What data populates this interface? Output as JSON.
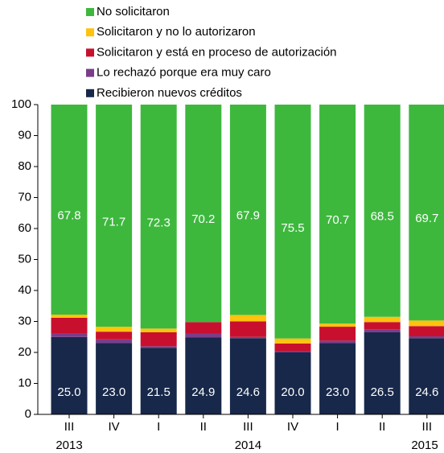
{
  "chart_data": {
    "type": "stacked_bar",
    "categories": [
      "III",
      "IV",
      "I",
      "II",
      "III",
      "IV",
      "I",
      "II",
      "III"
    ],
    "years": [
      "2013",
      null,
      null,
      null,
      "2014",
      null,
      null,
      null,
      "2015"
    ],
    "series": [
      {
        "name": "Recibieron nuevos créditos",
        "color": "#17284a",
        "values": [
          25.0,
          23.0,
          21.5,
          24.9,
          24.6,
          20.0,
          23.0,
          26.5,
          24.6
        ],
        "value_labels": [
          "25.0",
          "23.0",
          "21.5",
          "24.9",
          "24.6",
          "20.0",
          "23.0",
          "26.5",
          "24.6"
        ]
      },
      {
        "name": "Lo rechazó porque era muy caro",
        "color": "#7a3d8a",
        "values": [
          1.0,
          1.2,
          0.5,
          1.2,
          0.4,
          0.4,
          0.8,
          1.0,
          0.6
        ]
      },
      {
        "name": "Solicitaron y está en proceso de autorización",
        "color": "#c8102e",
        "values": [
          5.2,
          2.5,
          4.5,
          3.7,
          5.0,
          2.5,
          4.5,
          2.3,
          3.3
        ]
      },
      {
        "name": "Solicitaron y no lo autorizaron",
        "color": "#ffc20e",
        "values": [
          1.0,
          1.6,
          1.2,
          0.0,
          2.1,
          1.6,
          1.0,
          1.7,
          1.8
        ]
      },
      {
        "name": "No solicitaron",
        "color": "#3db83d",
        "values": [
          67.8,
          71.7,
          72.3,
          70.2,
          67.9,
          75.5,
          70.7,
          68.5,
          69.7
        ],
        "value_labels": [
          "67.8",
          "71.7",
          "72.3",
          "70.2",
          "67.9",
          "75.5",
          "70.7",
          "68.5",
          "69.7"
        ]
      }
    ],
    "ylim": [
      0,
      100
    ],
    "yticks": [
      0,
      10,
      20,
      30,
      40,
      50,
      60,
      70,
      80,
      90,
      100
    ]
  }
}
